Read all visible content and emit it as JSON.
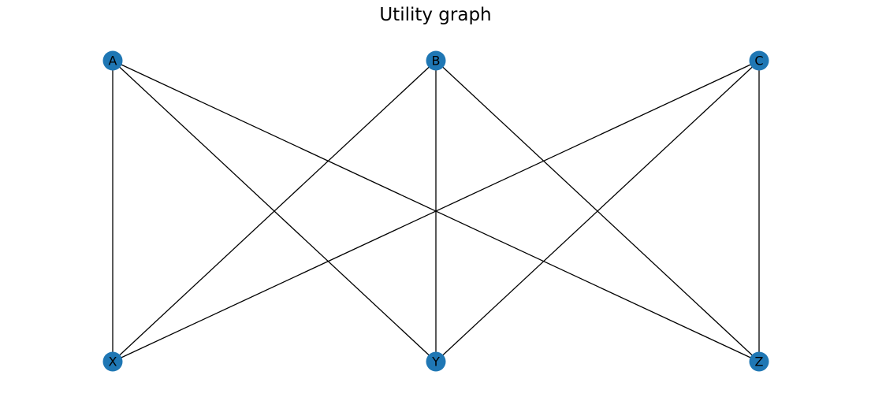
{
  "title": "Utility graph",
  "style": {
    "node_color": "#1f77b4",
    "edge_color": "#000000",
    "label_color": "#000000",
    "background": "#ffffff"
  },
  "graph": {
    "nodes": [
      {
        "id": "A",
        "label": "A",
        "side": "top"
      },
      {
        "id": "B",
        "label": "B",
        "side": "top"
      },
      {
        "id": "C",
        "label": "C",
        "side": "top"
      },
      {
        "id": "X",
        "label": "X",
        "side": "bottom"
      },
      {
        "id": "Y",
        "label": "Y",
        "side": "bottom"
      },
      {
        "id": "Z",
        "label": "Z",
        "side": "bottom"
      }
    ],
    "edges": [
      [
        "A",
        "X"
      ],
      [
        "A",
        "Y"
      ],
      [
        "A",
        "Z"
      ],
      [
        "B",
        "X"
      ],
      [
        "B",
        "Y"
      ],
      [
        "B",
        "Z"
      ],
      [
        "C",
        "X"
      ],
      [
        "C",
        "Y"
      ],
      [
        "C",
        "Z"
      ]
    ]
  }
}
